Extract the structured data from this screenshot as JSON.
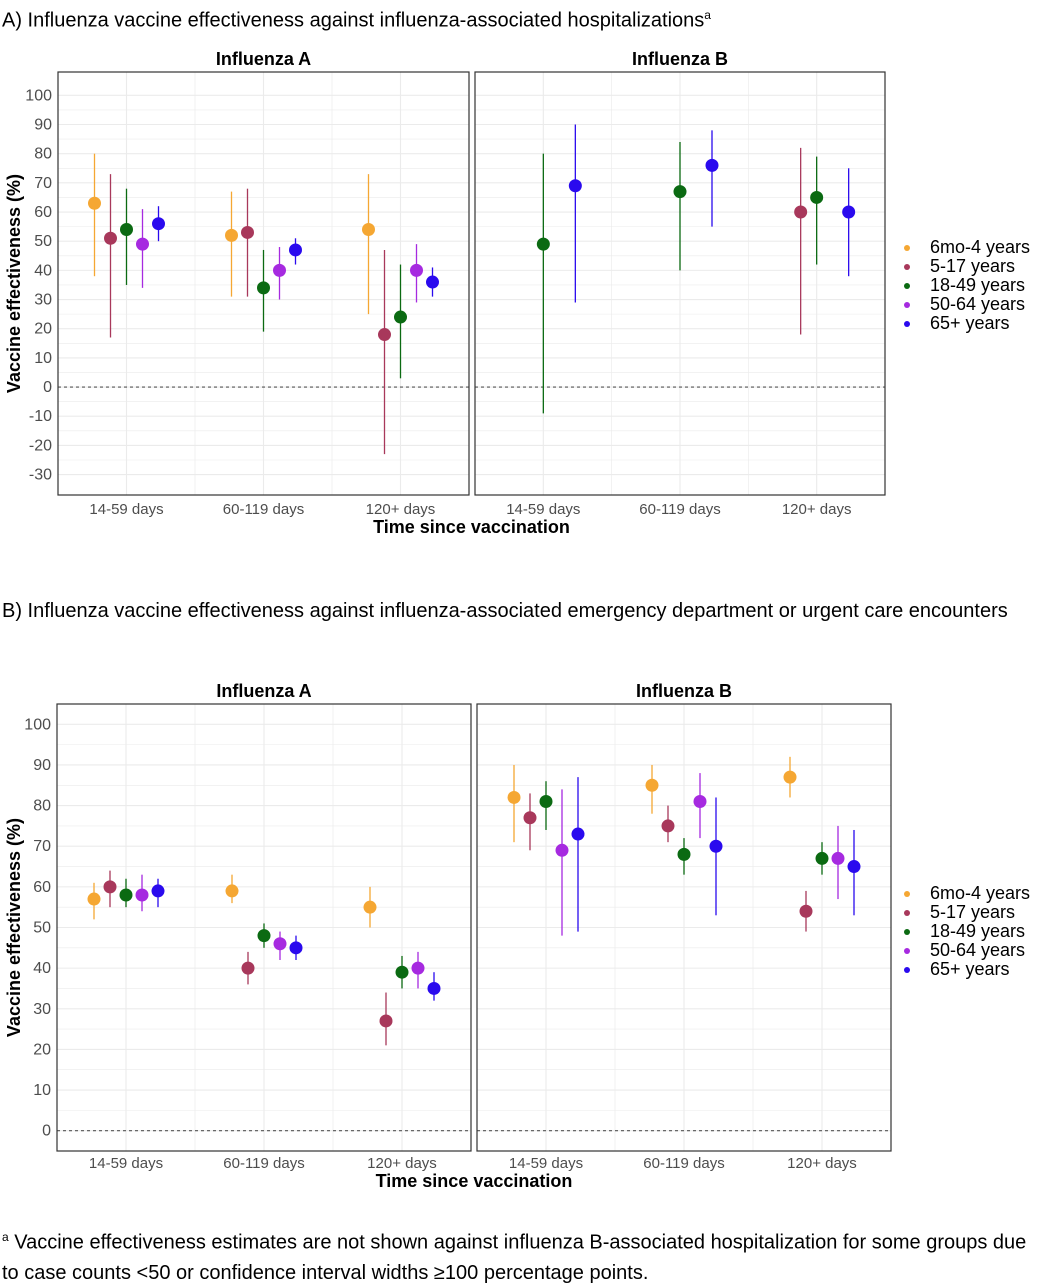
{
  "page": {
    "title_a": "A) Influenza vaccine effectiveness against influenza-associated hospitalizations",
    "title_a_mark": "a",
    "title_b": "B) Influenza vaccine effectiveness against influenza-associated emergency department or urgent care encounters",
    "footnote_mark": "a",
    "footnote": " Vaccine effectiveness estimates are not shown against influenza B-associated hospitalization for some groups due to case counts <50 or confidence interval widths ≥100 percentage points."
  },
  "colors": {
    "6mo-4 years": "#F5A733",
    "5-17 years": "#A8385B",
    "18-49 years": "#0B6A12",
    "50-64 years": "#A62AE0",
    "65+ years": "#2A0AEE",
    "grid": "#EBEBEB",
    "reference_line": "#555555"
  },
  "legend": [
    "6mo-4 years",
    "5-17 years",
    "18-49 years",
    "50-64 years",
    "65+ years"
  ],
  "chart_data": [
    {
      "type": "scatter",
      "title": "",
      "xlabel": "Time since vaccination",
      "ylabel": "Vaccine effectiveness (%)",
      "categories": [
        "14-59 days",
        "60-119 days",
        "120+ days"
      ],
      "ylim": [
        -37,
        108
      ],
      "yticks": [
        -30,
        -20,
        -10,
        0,
        10,
        20,
        30,
        40,
        50,
        60,
        70,
        80,
        90,
        100
      ],
      "reference_line": 0,
      "grid": true,
      "legend_position": "right",
      "panels": [
        {
          "name": "Influenza A",
          "series": [
            {
              "name": "6mo-4 years",
              "values": [
                [
                  63,
                  38,
                  80
                ],
                [
                  52,
                  31,
                  67
                ],
                [
                  54,
                  25,
                  73
                ]
              ]
            },
            {
              "name": "5-17 years",
              "values": [
                [
                  51,
                  17,
                  73
                ],
                [
                  53,
                  31,
                  68
                ],
                [
                  18,
                  -23,
                  47
                ]
              ]
            },
            {
              "name": "18-49 years",
              "values": [
                [
                  54,
                  35,
                  68
                ],
                [
                  34,
                  19,
                  47
                ],
                [
                  24,
                  3,
                  42
                ]
              ]
            },
            {
              "name": "50-64 years",
              "values": [
                [
                  49,
                  34,
                  61
                ],
                [
                  40,
                  30,
                  48
                ],
                [
                  40,
                  29,
                  49
                ]
              ]
            },
            {
              "name": "65+ years",
              "values": [
                [
                  56,
                  50,
                  62
                ],
                [
                  47,
                  42,
                  51
                ],
                [
                  36,
                  31,
                  41
                ]
              ]
            }
          ]
        },
        {
          "name": "Influenza B",
          "series": [
            {
              "name": "6mo-4 years",
              "values": [
                null,
                null,
                null
              ]
            },
            {
              "name": "5-17 years",
              "values": [
                null,
                null,
                [
                  60,
                  18,
                  82
                ]
              ]
            },
            {
              "name": "18-49 years",
              "values": [
                [
                  49,
                  -9,
                  80
                ],
                [
                  67,
                  40,
                  84
                ],
                [
                  65,
                  42,
                  79
                ]
              ]
            },
            {
              "name": "50-64 years",
              "values": [
                null,
                null,
                null
              ]
            },
            {
              "name": "65+ years",
              "values": [
                [
                  69,
                  29,
                  90
                ],
                [
                  76,
                  55,
                  88
                ],
                [
                  60,
                  38,
                  75
                ]
              ]
            }
          ]
        }
      ]
    },
    {
      "type": "scatter",
      "title": "",
      "xlabel": "Time since vaccination",
      "ylabel": "Vaccine effectiveness (%)",
      "categories": [
        "14-59 days",
        "60-119 days",
        "120+ days"
      ],
      "ylim": [
        -5,
        105
      ],
      "yticks": [
        0,
        10,
        20,
        30,
        40,
        50,
        60,
        70,
        80,
        90,
        100
      ],
      "reference_line": 0,
      "grid": true,
      "legend_position": "right",
      "panels": [
        {
          "name": "Influenza A",
          "series": [
            {
              "name": "6mo-4 years",
              "values": [
                [
                  57,
                  52,
                  61
                ],
                [
                  59,
                  56,
                  63
                ],
                [
                  55,
                  50,
                  60
                ]
              ]
            },
            {
              "name": "5-17 years",
              "values": [
                [
                  60,
                  55,
                  64
                ],
                [
                  40,
                  36,
                  44
                ],
                [
                  27,
                  21,
                  34
                ]
              ]
            },
            {
              "name": "18-49 years",
              "values": [
                [
                  58,
                  55,
                  62
                ],
                [
                  48,
                  45,
                  51
                ],
                [
                  39,
                  35,
                  43
                ]
              ]
            },
            {
              "name": "50-64 years",
              "values": [
                [
                  58,
                  54,
                  63
                ],
                [
                  46,
                  42,
                  49
                ],
                [
                  40,
                  35,
                  44
                ]
              ]
            },
            {
              "name": "65+ years",
              "values": [
                [
                  59,
                  55,
                  62
                ],
                [
                  45,
                  42,
                  48
                ],
                [
                  35,
                  32,
                  39
                ]
              ]
            }
          ]
        },
        {
          "name": "Influenza B",
          "series": [
            {
              "name": "6mo-4 years",
              "values": [
                [
                  82,
                  71,
                  90
                ],
                [
                  85,
                  78,
                  90
                ],
                [
                  87,
                  82,
                  92
                ]
              ]
            },
            {
              "name": "5-17 years",
              "values": [
                [
                  77,
                  69,
                  83
                ],
                [
                  75,
                  71,
                  80
                ],
                [
                  54,
                  49,
                  59
                ]
              ]
            },
            {
              "name": "18-49 years",
              "values": [
                [
                  81,
                  74,
                  86
                ],
                [
                  68,
                  63,
                  72
                ],
                [
                  67,
                  63,
                  71
                ]
              ]
            },
            {
              "name": "50-64 years",
              "values": [
                [
                  69,
                  48,
                  84
                ],
                [
                  81,
                  72,
                  88
                ],
                [
                  67,
                  57,
                  75
                ]
              ]
            },
            {
              "name": "65+ years",
              "values": [
                [
                  73,
                  49,
                  87
                ],
                [
                  70,
                  53,
                  82
                ],
                [
                  65,
                  53,
                  74
                ]
              ]
            }
          ]
        }
      ]
    }
  ]
}
